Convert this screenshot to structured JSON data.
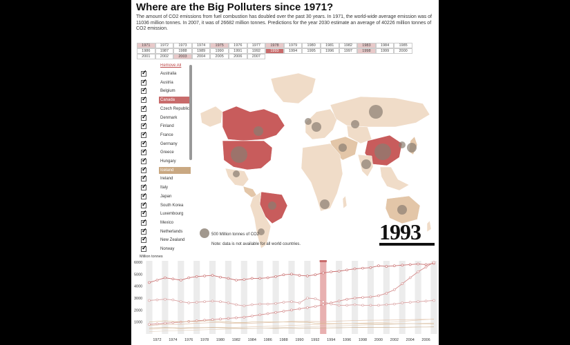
{
  "header": {
    "title": "Where are the Big Polluters since 1971?",
    "subtitle": "The amount of CO2 emissions from fuel combustion has doubled over the past 30 years. In 1971, the world-wide average emission was of 11036 million tonnes. In 2007, it was of 26682 million tonnes. Predictions for the year 2030 estimate an average of 40226 million tonnes of CO2 emission."
  },
  "years": {
    "rows": [
      [
        "1971",
        "1972",
        "1973",
        "1974",
        "1975",
        "1976",
        "1977",
        "1978",
        "1979",
        "1980",
        "1981",
        "1982",
        "1983",
        "1984",
        "1985"
      ],
      [
        "1986",
        "1987",
        "1988",
        "1989",
        "1990",
        "1991",
        "1992",
        "1993",
        "1994",
        "1995",
        "1996",
        "1997",
        "1998",
        "1999",
        "2000"
      ],
      [
        "2001",
        "2002",
        "2003",
        "2004",
        "2005",
        "2006",
        "2007"
      ]
    ],
    "highlighted": [
      "1971",
      "1975",
      "1978",
      "1983",
      "1998",
      "2003"
    ],
    "selected": "1993"
  },
  "countries": {
    "select_all": "Remove All",
    "items": [
      {
        "name": "Australia",
        "hl": ""
      },
      {
        "name": "Austria",
        "hl": ""
      },
      {
        "name": "Belgium",
        "hl": ""
      },
      {
        "name": "Canada",
        "hl": "red"
      },
      {
        "name": "Czech Republic",
        "hl": ""
      },
      {
        "name": "Denmark",
        "hl": ""
      },
      {
        "name": "Finland",
        "hl": ""
      },
      {
        "name": "France",
        "hl": ""
      },
      {
        "name": "Germany",
        "hl": ""
      },
      {
        "name": "Greece",
        "hl": ""
      },
      {
        "name": "Hungary",
        "hl": ""
      },
      {
        "name": "Iceland",
        "hl": "tan"
      },
      {
        "name": "Ireland",
        "hl": ""
      },
      {
        "name": "Italy",
        "hl": ""
      },
      {
        "name": "Japan",
        "hl": ""
      },
      {
        "name": "South Korea",
        "hl": ""
      },
      {
        "name": "Luxembourg",
        "hl": ""
      },
      {
        "name": "Mexico",
        "hl": ""
      },
      {
        "name": "Netherlands",
        "hl": ""
      },
      {
        "name": "New Zealand",
        "hl": ""
      },
      {
        "name": "Norway",
        "hl": ""
      }
    ]
  },
  "map": {
    "legend": "500 Million tonnes of CO2",
    "note": "Note: data is not available for all world countries.",
    "current_year": "1993",
    "colors": {
      "land": "#f0dcc8",
      "land_dark": "#e3c6a8",
      "highlight": "#c85c5c",
      "bubble": "#8a7e72"
    }
  },
  "chart": {
    "ylabel": "Million tonnes",
    "yticks": [
      "6000",
      "5000",
      "4000",
      "3000",
      "2000",
      "1000"
    ],
    "xticks": [
      "1972",
      "1974",
      "1976",
      "1978",
      "1980",
      "1982",
      "1984",
      "1986",
      "1988",
      "1990",
      "1992",
      "1994",
      "1996",
      "1998",
      "2000",
      "2002",
      "2004",
      "2006"
    ],
    "selected_year": "1993",
    "colors": {
      "main": "#c86b6b",
      "band": "#ececec",
      "minor": "#e0c8b0"
    }
  },
  "chart_data": {
    "type": "line",
    "ylabel": "Million tonnes",
    "ylim": [
      0,
      6000
    ],
    "x": [
      1971,
      1972,
      1973,
      1974,
      1975,
      1976,
      1977,
      1978,
      1979,
      1980,
      1981,
      1982,
      1983,
      1984,
      1985,
      1986,
      1987,
      1988,
      1989,
      1990,
      1991,
      1992,
      1993,
      1994,
      1995,
      1996,
      1997,
      1998,
      1999,
      2000,
      2001,
      2002,
      2003,
      2004,
      2005,
      2006,
      2007
    ],
    "series": [
      {
        "values": [
          4300,
          4500,
          4700,
          4600,
          4500,
          4700,
          4800,
          4850,
          4900,
          4750,
          4650,
          4500,
          4550,
          4650,
          4650,
          4700,
          4800,
          4950,
          5000,
          4900,
          4850,
          4950,
          5100,
          5200,
          5250,
          5350,
          5450,
          5500,
          5550,
          5700,
          5650,
          5700,
          5750,
          5800,
          5850,
          5800,
          5900
        ]
      },
      {
        "values": [
          800,
          850,
          900,
          950,
          1000,
          1050,
          1100,
          1150,
          1200,
          1250,
          1300,
          1350,
          1400,
          1500,
          1600,
          1700,
          1800,
          1900,
          2000,
          2100,
          2200,
          2300,
          2450,
          2600,
          2750,
          2900,
          3000,
          3050,
          3100,
          3200,
          3400,
          3700,
          4200,
          4700,
          5200,
          5600,
          6000
        ]
      },
      {
        "values": [
          2800,
          2850,
          2900,
          2850,
          2700,
          2600,
          2650,
          2700,
          2750,
          2700,
          2600,
          2450,
          2350,
          2450,
          2500,
          2500,
          2550,
          2650,
          2700,
          2600,
          3000,
          2950,
          2700,
          2500,
          2400,
          2400,
          2450,
          2400,
          2400,
          2400,
          2450,
          2500,
          2600,
          2650,
          2700,
          2750,
          2800
        ]
      },
      {
        "values": [
          700,
          750,
          800,
          800,
          800,
          850,
          900,
          920,
          950,
          950,
          900,
          880,
          880,
          900,
          920,
          950,
          980,
          1000,
          1050,
          1050,
          1050,
          1040,
          1030,
          1050,
          1080,
          1100,
          1120,
          1140,
          1150,
          1150,
          1160,
          1170,
          1180,
          1200,
          1210,
          1220,
          1230
        ]
      },
      {
        "values": [
          1000,
          1050,
          1100,
          1050,
          1000,
          1050,
          1050,
          1100,
          1100,
          1050,
          1000,
          950,
          950,
          1000,
          1000,
          1000,
          1000,
          1000,
          1000,
          980,
          980,
          900,
          880,
          870,
          870,
          880,
          870,
          860,
          850,
          850,
          860,
          850,
          860,
          870,
          860,
          860,
          850
        ]
      },
      {
        "values": [
          400,
          420,
          450,
          450,
          450,
          480,
          500,
          520,
          540,
          550,
          560,
          560,
          580,
          600,
          620,
          640,
          660,
          690,
          720,
          740,
          760,
          780,
          800,
          820,
          850,
          870,
          890,
          910,
          930,
          950,
          970,
          1000,
          1050,
          1100,
          1150,
          1200,
          1250
        ]
      },
      {
        "values": [
          500,
          520,
          540,
          530,
          500,
          520,
          520,
          530,
          540,
          520,
          500,
          480,
          470,
          470,
          480,
          480,
          470,
          480,
          480,
          470,
          480,
          490,
          500,
          510,
          520,
          530,
          540,
          550,
          540,
          540,
          550,
          560,
          560,
          570,
          580,
          580,
          590
        ]
      },
      {
        "values": [
          200,
          220,
          250,
          270,
          290,
          310,
          330,
          350,
          370,
          390,
          410,
          430,
          440,
          460,
          480,
          500,
          520,
          540,
          560,
          580,
          600,
          620,
          640,
          660,
          680,
          700,
          720,
          740,
          760,
          780,
          800,
          820,
          840,
          860,
          880,
          900,
          920
        ]
      }
    ]
  }
}
